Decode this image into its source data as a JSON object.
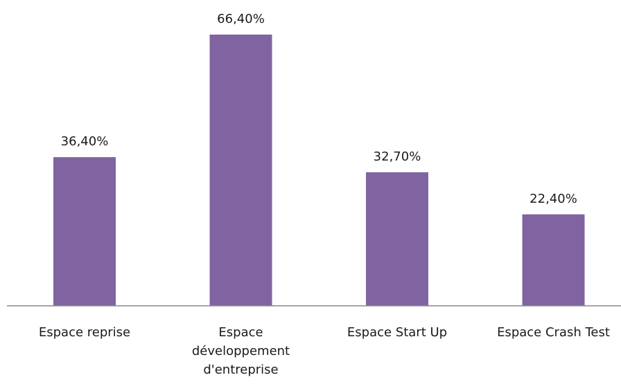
{
  "chart_data": {
    "type": "bar",
    "categories": [
      [
        "Espace reprise"
      ],
      [
        "Espace",
        "développement",
        "d'entreprise"
      ],
      [
        "Espace Start Up"
      ],
      [
        "Espace Crash Test"
      ]
    ],
    "values": [
      36.4,
      66.4,
      32.7,
      22.4
    ],
    "data_labels": [
      "36,40%",
      "66,40%",
      "32,70%",
      "22,40%"
    ],
    "title": "",
    "xlabel": "",
    "ylabel": "",
    "ylim": [
      0,
      70
    ],
    "grid": false,
    "legend": "none",
    "bar_color": "#8064a2",
    "axis_color": "#898989"
  }
}
